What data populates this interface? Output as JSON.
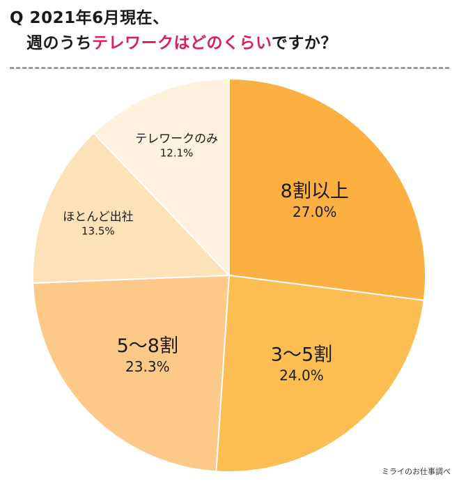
{
  "title": {
    "line1": "Q 2021年6月現在、",
    "line2_prefix": "週のうち",
    "line2_accent": "テレワークはどのくらい",
    "line2_suffix": "ですか？"
  },
  "source": "ミライのお仕事調べ",
  "colors": {
    "accent": "#d6225a",
    "divider": "#9a9a9a"
  },
  "chart_data": {
    "type": "pie",
    "title": "Q 2021年6月現在、週のうちテレワークはどのくらいですか？",
    "start_angle_deg": 0,
    "direction": "clockwise",
    "slices": [
      {
        "label": "8割以上",
        "value": 27.0,
        "value_label": "27.0%",
        "color": "#fbb041"
      },
      {
        "label": "3〜5割",
        "value": 24.0,
        "value_label": "24.0%",
        "color": "#fcbe53"
      },
      {
        "label": "5〜8割",
        "value": 23.3,
        "value_label": "23.3%",
        "color": "#fdc988"
      },
      {
        "label": "ほとんど出社",
        "value": 13.5,
        "value_label": "13.5%",
        "color": "#fde1b8"
      },
      {
        "label": "テレワークのみ",
        "value": 12.1,
        "value_label": "12.1%",
        "color": "#fef1de"
      }
    ]
  }
}
